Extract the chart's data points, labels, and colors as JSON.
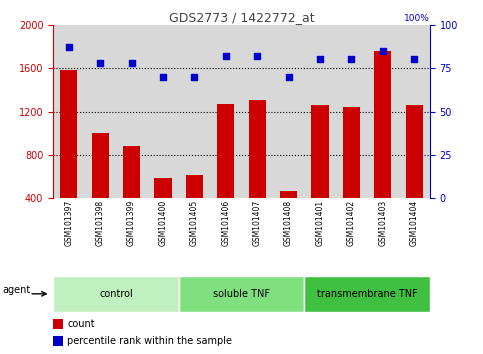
{
  "title": "GDS2773 / 1422772_at",
  "samples": [
    "GSM101397",
    "GSM101398",
    "GSM101399",
    "GSM101400",
    "GSM101405",
    "GSM101406",
    "GSM101407",
    "GSM101408",
    "GSM101401",
    "GSM101402",
    "GSM101403",
    "GSM101404"
  ],
  "counts": [
    1580,
    1000,
    880,
    590,
    610,
    1270,
    1310,
    470,
    1260,
    1240,
    1760,
    1260
  ],
  "percentiles": [
    87,
    78,
    78,
    70,
    70,
    82,
    82,
    70,
    80,
    80,
    85,
    80
  ],
  "groups": [
    {
      "label": "control",
      "start": 0,
      "end": 4,
      "color": "#c0f0c0"
    },
    {
      "label": "soluble TNF",
      "start": 4,
      "end": 8,
      "color": "#80e080"
    },
    {
      "label": "transmembrane TNF",
      "start": 8,
      "end": 12,
      "color": "#40c040"
    }
  ],
  "bar_color": "#cc0000",
  "dot_color": "#0000cc",
  "ylim_left": [
    400,
    2000
  ],
  "ylim_right": [
    0,
    100
  ],
  "yticks_left": [
    400,
    800,
    1200,
    1600,
    2000
  ],
  "yticks_right": [
    0,
    25,
    50,
    75,
    100
  ],
  "grid_values": [
    800,
    1200,
    1600
  ],
  "bg_color": "#d8d8d8",
  "legend_count_label": "count",
  "legend_pct_label": "percentile rank within the sample",
  "agent_label": "agent",
  "title_color": "#444444",
  "left_axis_color": "#cc0000",
  "right_axis_color": "#0000cc"
}
